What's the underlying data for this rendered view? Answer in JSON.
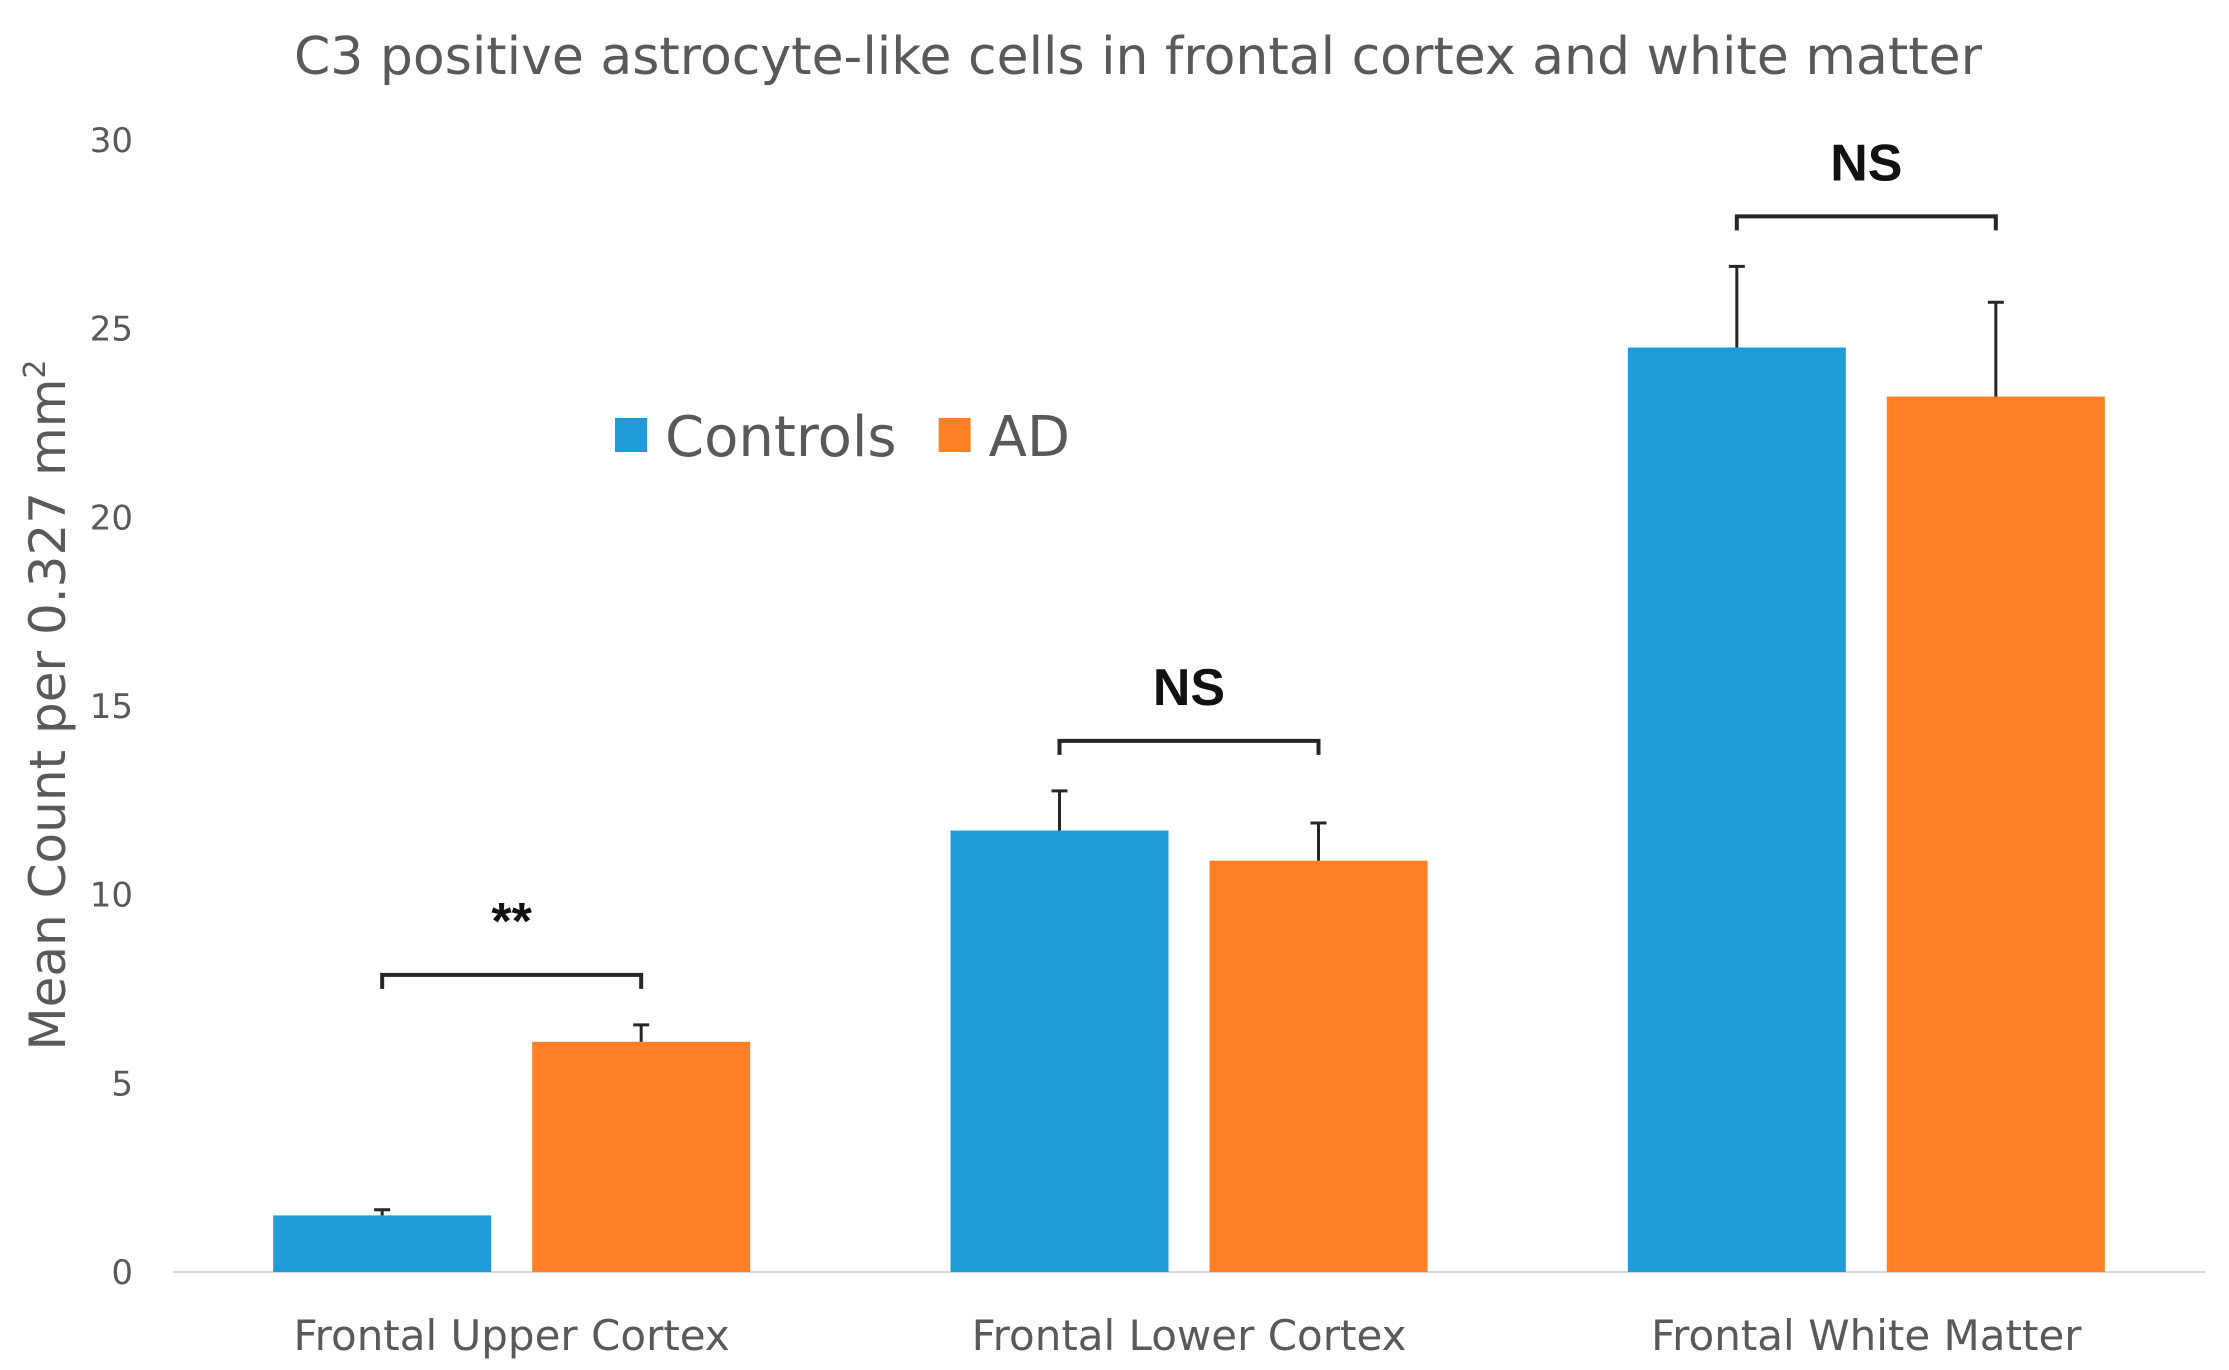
{
  "chart_data": {
    "type": "bar",
    "title": "C3 positive astrocyte-like cells in frontal cortex and white matter",
    "ylabel_main": "Mean Count  per 0.327 mm",
    "ylabel_sup": "2",
    "xlabel": "",
    "ylim": [
      0,
      30
    ],
    "yticks": [
      0,
      5,
      10,
      15,
      20,
      25,
      30
    ],
    "categories": [
      "Frontal Upper Cortex",
      "Frontal Lower Cortex",
      "Frontal White Matter"
    ],
    "series": [
      {
        "name": "Controls",
        "color": "#1F9BD7",
        "values": [
          1.5,
          11.7,
          24.5
        ],
        "errors": [
          0.15,
          1.05,
          2.15
        ]
      },
      {
        "name": "AD",
        "color": "#FF7F27",
        "values": [
          6.1,
          10.9,
          23.2
        ],
        "errors": [
          0.45,
          1.0,
          2.5
        ]
      }
    ],
    "significance": [
      "**",
      "NS",
      "NS"
    ],
    "legend_position": "top-left",
    "grid": false
  }
}
